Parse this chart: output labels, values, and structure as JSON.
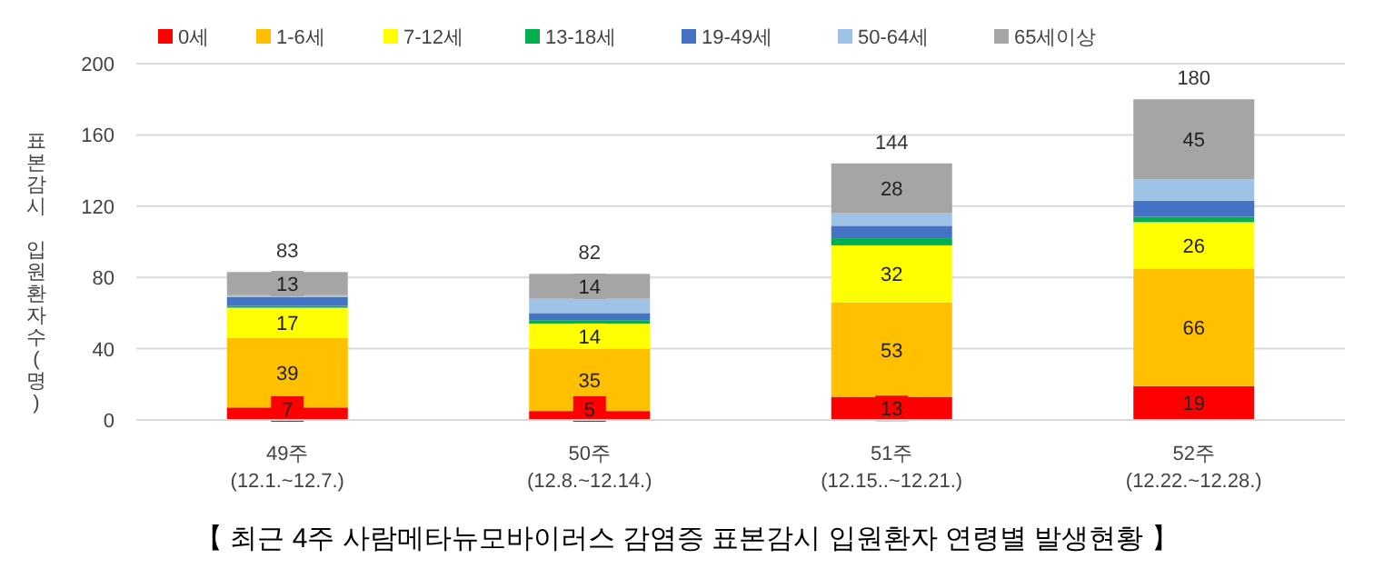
{
  "chart_data": {
    "type": "bar",
    "stacked": true,
    "ylabel": "표본감시 입원환자수(명)",
    "categories": [
      "49주\n(12.1.~12.7.)",
      "50주\n(12.8.~12.14.)",
      "51주\n(12.15..~12.21.)",
      "52주\n(12.22.~12.28.)"
    ],
    "series": [
      {
        "name": "0세",
        "color": "#ff0000",
        "values": [
          7,
          5,
          13,
          19
        ],
        "value_labels": [
          "7",
          "5",
          "13",
          "19"
        ]
      },
      {
        "name": "1-6세",
        "color": "#ffc000",
        "values": [
          39,
          35,
          53,
          66
        ],
        "value_labels": [
          "39",
          "35",
          "53",
          "66"
        ]
      },
      {
        "name": "7-12세",
        "color": "#ffff00",
        "values": [
          17,
          14,
          32,
          26
        ],
        "value_labels": [
          "17",
          "14",
          "32",
          "26"
        ]
      },
      {
        "name": "13-18세",
        "color": "#00b050",
        "values": [
          1,
          2,
          4,
          3
        ]
      },
      {
        "name": "19-49세",
        "color": "#4472c4",
        "values": [
          5,
          4,
          7,
          9
        ]
      },
      {
        "name": "50-64세",
        "color": "#9dc3e6",
        "values": [
          1,
          8,
          7,
          12
        ]
      },
      {
        "name": "65세이상",
        "color": "#a5a5a5",
        "values": [
          13,
          14,
          28,
          45
        ],
        "value_labels": [
          "13",
          "14",
          "28",
          "45"
        ]
      }
    ],
    "totals": [
      "83",
      "82",
      "144",
      "180"
    ],
    "ylim": [
      0,
      200
    ],
    "yticks": [
      0,
      40,
      80,
      120,
      160,
      200
    ],
    "grid": "y",
    "legend": "top",
    "annotations": [
      "【 최근 4주 사람메타뉴모바이러스 감염증 표본감시 입원환자 연령별 발생현황 】"
    ]
  }
}
